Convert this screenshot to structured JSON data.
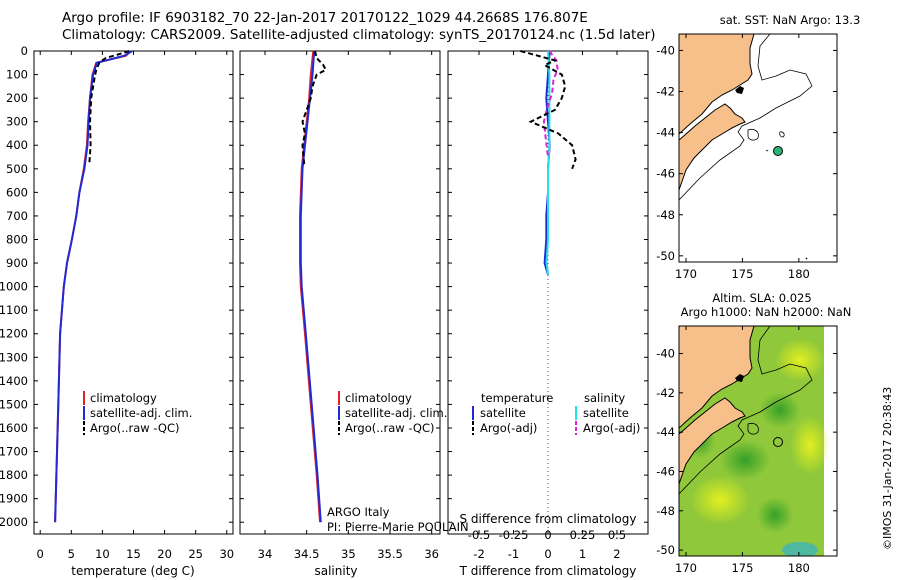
{
  "header": {
    "line1": "Argo profile: IF 6903182_70 22-Jan-2017 20170122_1029 44.2668S 176.807E",
    "line2": "Climatology: CARS2009. Satellite-adjusted climatology: synTS_20170124.nc (1.5d later)"
  },
  "colors": {
    "climatology": "#e0202a",
    "satellite": "#1f2bd6",
    "argo": "#000000",
    "satellite_sal": "#22e0e8",
    "argo_sal": "#e020d8",
    "land": "#f7c08a",
    "float_marker": "#2bb673"
  },
  "chart_data": [
    {
      "type": "line",
      "panel": "temperature",
      "xlabel": "temperature (deg C)",
      "ylabel": "",
      "xlim": [
        -1,
        31
      ],
      "xticks": [
        "0",
        "5",
        "10",
        "15",
        "20",
        "25",
        "30"
      ],
      "ylim": [
        0,
        2050
      ],
      "yticks": [
        "0",
        "100",
        "200",
        "300",
        "400",
        "500",
        "600",
        "700",
        "800",
        "900",
        "1000",
        "1100",
        "1200",
        "1300",
        "1400",
        "1500",
        "1600",
        "1700",
        "1800",
        "1900",
        "2000"
      ],
      "legend": [
        "climatology",
        "satellite-adj. clim.",
        "Argo(..raw -QC)"
      ],
      "series": [
        {
          "name": "climatology",
          "depth": [
            0,
            20,
            50,
            100,
            200,
            300,
            400,
            500,
            600,
            700,
            800,
            900,
            1000,
            1200,
            1500,
            2000
          ],
          "values": [
            14.5,
            13.8,
            9.0,
            8.4,
            8.0,
            7.7,
            7.5,
            7.0,
            6.3,
            5.8,
            5.1,
            4.3,
            3.8,
            3.2,
            2.9,
            2.4
          ]
        },
        {
          "name": "satellite-adj. clim.",
          "depth": [
            0,
            20,
            50,
            100,
            200,
            300,
            400,
            500,
            600,
            700,
            800,
            900,
            1000,
            1200,
            1500,
            2000
          ],
          "values": [
            14.8,
            13.5,
            9.1,
            8.5,
            8.0,
            7.8,
            7.6,
            7.1,
            6.3,
            5.8,
            5.1,
            4.3,
            3.8,
            3.2,
            2.9,
            2.4
          ]
        },
        {
          "name": "Argo(..raw -QC)",
          "depth": [
            0,
            15,
            30,
            50,
            80,
            120,
            200,
            300,
            400,
            480
          ],
          "values": [
            14.3,
            12.5,
            10.5,
            9.5,
            9.0,
            8.7,
            8.2,
            8.0,
            8.1,
            7.9
          ]
        }
      ],
      "annotation": []
    },
    {
      "type": "line",
      "panel": "salinity",
      "xlabel": "salinity",
      "xlim": [
        33.7,
        36.1
      ],
      "xticks": [
        "34",
        "34.5",
        "35",
        "35.5",
        "36"
      ],
      "ylim": [
        0,
        2050
      ],
      "legend": [
        "climatology",
        "satellite-adj. clim.",
        "Argo(..raw -QC)"
      ],
      "series": [
        {
          "name": "climatology",
          "depth": [
            0,
            100,
            200,
            300,
            400,
            500,
            700,
            900,
            1000,
            1200,
            1500,
            1800,
            2000
          ],
          "values": [
            34.58,
            34.55,
            34.53,
            34.5,
            34.47,
            34.44,
            34.42,
            34.42,
            34.43,
            34.48,
            34.55,
            34.62,
            34.66
          ]
        },
        {
          "name": "satellite-adj. clim.",
          "depth": [
            0,
            100,
            200,
            300,
            400,
            500,
            700,
            900,
            1000,
            1200,
            1500,
            1800,
            2000
          ],
          "values": [
            34.59,
            34.57,
            34.54,
            34.51,
            34.48,
            34.45,
            34.43,
            34.43,
            34.44,
            34.49,
            34.56,
            34.63,
            34.67
          ]
        },
        {
          "name": "Argo(..raw -QC)",
          "depth": [
            0,
            30,
            60,
            80,
            100,
            150,
            200,
            250,
            300,
            350,
            400,
            480
          ],
          "values": [
            34.6,
            34.62,
            34.7,
            34.73,
            34.62,
            34.57,
            34.55,
            34.5,
            34.45,
            34.48,
            34.45,
            34.47
          ]
        }
      ],
      "annotation": [
        "ARGO Italy",
        "PI: Pierre-Marie POULAIN"
      ]
    },
    {
      "type": "line",
      "panel": "differences",
      "xlabel": "T difference from climatology",
      "xlabel_top": "S difference from climatology",
      "xlim": [
        -2.9,
        2.9
      ],
      "xticks": [
        "-2",
        "-1",
        "0",
        "1",
        "2"
      ],
      "xticks_top": [
        "-0.5",
        "-0.25",
        "0",
        "0.25",
        "0.5"
      ],
      "ylim": [
        0,
        2050
      ],
      "legend": {
        "temperature": [
          "satellite",
          "Argo(-adj)"
        ],
        "salinity": [
          "satellite",
          "Argo(-adj)"
        ]
      },
      "series": [
        {
          "name": "T satellite",
          "depth": [
            0,
            100,
            200,
            300,
            400,
            500,
            600,
            700,
            800,
            900,
            950
          ],
          "values": [
            0.05,
            0.0,
            -0.05,
            0.0,
            0.05,
            0.0,
            0.0,
            -0.05,
            -0.05,
            -0.1,
            0.0
          ]
        },
        {
          "name": "T Argo(-adj)",
          "depth": [
            0,
            20,
            40,
            60,
            100,
            150,
            200,
            250,
            300,
            350,
            400,
            460,
            500
          ],
          "values": [
            -0.8,
            -0.3,
            0.2,
            -0.1,
            0.4,
            0.5,
            0.4,
            0.2,
            -0.5,
            0.3,
            0.7,
            0.8,
            0.7
          ]
        },
        {
          "name": "S satellite",
          "depth": [
            0,
            100,
            200,
            300,
            400,
            500,
            600,
            700,
            800,
            900,
            950
          ],
          "values": [
            0.0,
            0.01,
            0.01,
            0.01,
            0.01,
            0.0,
            0.0,
            0.0,
            0.0,
            -0.01,
            0.0
          ]
        },
        {
          "name": "S Argo(-adj)",
          "depth": [
            0,
            40,
            80,
            120,
            180,
            250,
            300,
            350,
            400,
            450
          ],
          "values": [
            0.01,
            0.06,
            0.07,
            0.04,
            0.03,
            -0.01,
            -0.03,
            -0.02,
            -0.01,
            0.0
          ]
        }
      ]
    }
  ],
  "maps": {
    "sst": {
      "title": "sat. SST: NaN Argo: 13.3",
      "yticks": [
        "-40",
        "-42",
        "-44",
        "-46",
        "-48",
        "-50"
      ],
      "xticks": [
        "170",
        "175",
        "180"
      ],
      "float_position": {
        "lon": 176.807,
        "lat": -44.2668
      }
    },
    "sla": {
      "title1": "Altim. SLA: 0.025",
      "title2": "Argo h1000: NaN h2000: NaN",
      "yticks": [
        "-40",
        "-42",
        "-44",
        "-46",
        "-48",
        "-50"
      ],
      "xticks": [
        "170",
        "175",
        "180"
      ]
    }
  },
  "credit": "©IMOS 31-Jan-2017 20:38:43"
}
